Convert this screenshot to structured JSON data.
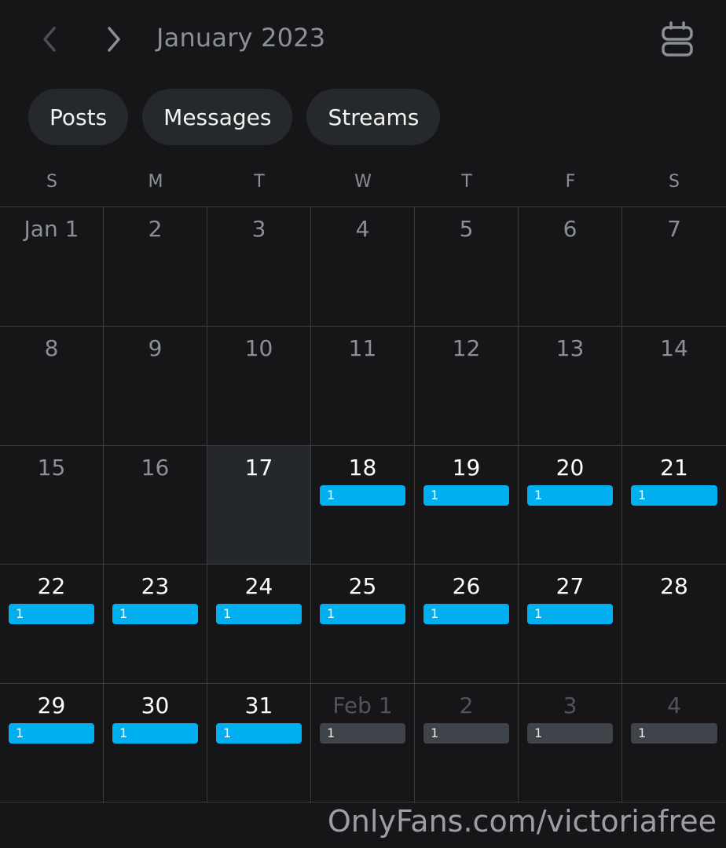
{
  "header": {
    "month_title": "January 2023",
    "prev_icon": "chevron-left-icon",
    "next_icon": "chevron-right-icon",
    "view_toggle_icon": "calendar-view-toggle-icon"
  },
  "filters": [
    "Posts",
    "Messages",
    "Streams"
  ],
  "weekdays": [
    "S",
    "M",
    "T",
    "W",
    "T",
    "F",
    "S"
  ],
  "colors": {
    "accent_blue": "#00aff0",
    "badge_grey": "#3e444a",
    "background": "#161618",
    "chip_bg": "#25292b",
    "today_bg": "#24282a"
  },
  "days": [
    {
      "label": "Jan 1",
      "state": "past"
    },
    {
      "label": "2",
      "state": "past"
    },
    {
      "label": "3",
      "state": "past"
    },
    {
      "label": "4",
      "state": "past"
    },
    {
      "label": "5",
      "state": "past"
    },
    {
      "label": "6",
      "state": "past"
    },
    {
      "label": "7",
      "state": "past"
    },
    {
      "label": "8",
      "state": "past"
    },
    {
      "label": "9",
      "state": "past"
    },
    {
      "label": "10",
      "state": "past"
    },
    {
      "label": "11",
      "state": "past"
    },
    {
      "label": "12",
      "state": "past"
    },
    {
      "label": "13",
      "state": "past"
    },
    {
      "label": "14",
      "state": "past"
    },
    {
      "label": "15",
      "state": "past"
    },
    {
      "label": "16",
      "state": "past"
    },
    {
      "label": "17",
      "state": "today"
    },
    {
      "label": "18",
      "state": "active",
      "badge": "1",
      "badge_color": "blue"
    },
    {
      "label": "19",
      "state": "active",
      "badge": "1",
      "badge_color": "blue"
    },
    {
      "label": "20",
      "state": "active",
      "badge": "1",
      "badge_color": "blue"
    },
    {
      "label": "21",
      "state": "active",
      "badge": "1",
      "badge_color": "blue"
    },
    {
      "label": "22",
      "state": "active",
      "badge": "1",
      "badge_color": "blue"
    },
    {
      "label": "23",
      "state": "active",
      "badge": "1",
      "badge_color": "blue"
    },
    {
      "label": "24",
      "state": "active",
      "badge": "1",
      "badge_color": "blue"
    },
    {
      "label": "25",
      "state": "active",
      "badge": "1",
      "badge_color": "blue"
    },
    {
      "label": "26",
      "state": "active",
      "badge": "1",
      "badge_color": "blue"
    },
    {
      "label": "27",
      "state": "active",
      "badge": "1",
      "badge_color": "blue"
    },
    {
      "label": "28",
      "state": "active"
    },
    {
      "label": "29",
      "state": "active",
      "badge": "1",
      "badge_color": "blue"
    },
    {
      "label": "30",
      "state": "active",
      "badge": "1",
      "badge_color": "blue"
    },
    {
      "label": "31",
      "state": "active",
      "badge": "1",
      "badge_color": "blue"
    },
    {
      "label": "Feb 1",
      "state": "other",
      "badge": "1",
      "badge_color": "grey"
    },
    {
      "label": "2",
      "state": "other",
      "badge": "1",
      "badge_color": "grey"
    },
    {
      "label": "3",
      "state": "other",
      "badge": "1",
      "badge_color": "grey"
    },
    {
      "label": "4",
      "state": "other",
      "badge": "1",
      "badge_color": "grey"
    }
  ],
  "watermark": "OnlyFans.com/victoriafree"
}
